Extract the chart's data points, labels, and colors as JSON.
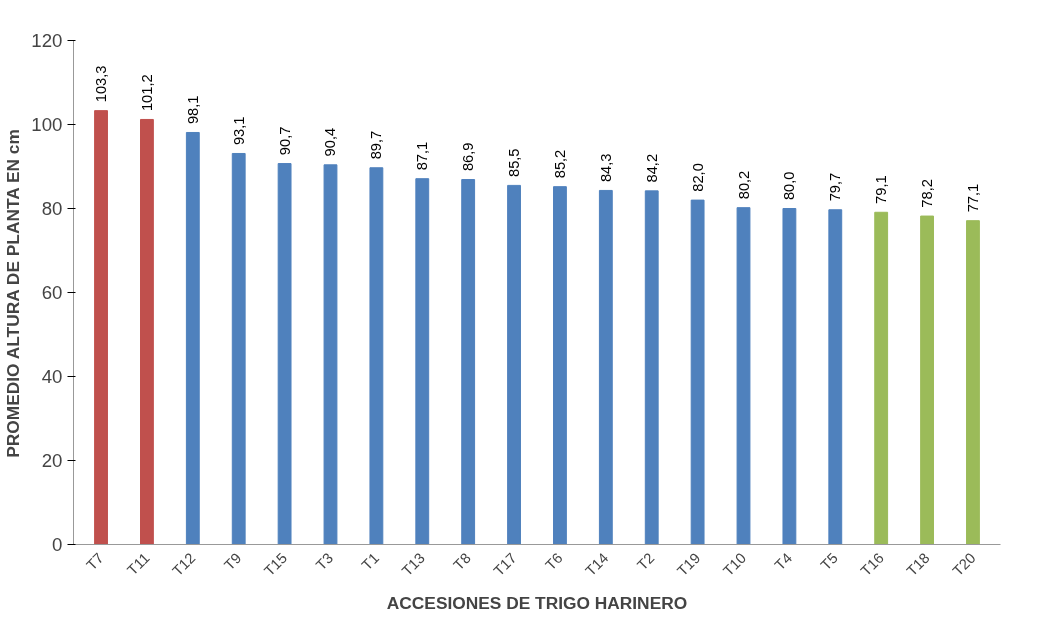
{
  "chart_data": {
    "type": "bar",
    "xlabel": "ACCESIONES DE TRIGO HARINERO",
    "ylabel": "PROMEDIO ALTURA DE PLANTA EN cm",
    "categories": [
      "T7",
      "T11",
      "T12",
      "T9",
      "T15",
      "T3",
      "T1",
      "T13",
      "T8",
      "T17",
      "T6",
      "T14",
      "T2",
      "T19",
      "T10",
      "T4",
      "T5",
      "T16",
      "T18",
      "T20"
    ],
    "values": [
      103.3,
      101.2,
      98.1,
      93.1,
      90.7,
      90.4,
      89.7,
      87.1,
      86.9,
      85.5,
      85.2,
      84.3,
      84.2,
      82.0,
      80.2,
      80.0,
      79.7,
      79.1,
      78.2,
      77.1
    ],
    "value_labels": [
      "103,3",
      "101,2",
      "98,1",
      "93,1",
      "90,7",
      "90,4",
      "89,7",
      "87,1",
      "86,9",
      "85,5",
      "85,2",
      "84,3",
      "84,2",
      "82,0",
      "80,2",
      "80,0",
      "79,7",
      "79,1",
      "78,2",
      "77,1"
    ],
    "colors": [
      "#c0504d",
      "#c0504d",
      "#4f81bd",
      "#4f81bd",
      "#4f81bd",
      "#4f81bd",
      "#4f81bd",
      "#4f81bd",
      "#4f81bd",
      "#4f81bd",
      "#4f81bd",
      "#4f81bd",
      "#4f81bd",
      "#4f81bd",
      "#4f81bd",
      "#4f81bd",
      "#4f81bd",
      "#9bbb59",
      "#9bbb59",
      "#9bbb59"
    ],
    "ylim": [
      0,
      120
    ],
    "yticks": [
      0,
      20,
      40,
      60,
      80,
      100,
      120
    ],
    "grid": false
  }
}
